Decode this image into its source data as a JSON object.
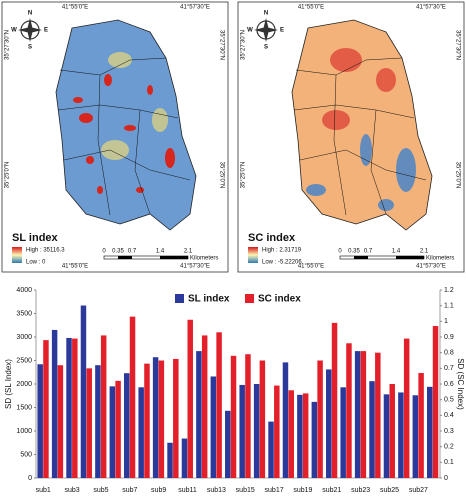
{
  "maps": [
    {
      "title": "SL index",
      "legend_high": "High : 35116.3",
      "legend_low": "Low : 0",
      "x_labels": [
        "41°55'0\"E",
        "41°57'30\"E"
      ],
      "y_labels": [
        "35°27'30\"N",
        "35°25'0\"N"
      ],
      "scale_ticks": [
        "0",
        "0.35",
        "0.7",
        "1.4",
        "2.1"
      ],
      "scale_unit": "Kilometers",
      "compass": [
        "N",
        "E",
        "S",
        "W"
      ]
    },
    {
      "title": "SC  index",
      "legend_high": "High : 2.31719",
      "legend_low": "Low : -5.22206",
      "x_labels": [
        "41°55'0\"E",
        "41°57'30\"E"
      ],
      "y_labels": [
        "35°27'30\"N",
        "35°25'0\"N"
      ],
      "scale_ticks": [
        "0",
        "0.35",
        "0.7",
        "1.4",
        "2.1"
      ],
      "scale_unit": "Kilometers",
      "compass": [
        "N",
        "E",
        "S",
        "W"
      ]
    }
  ],
  "chart_data": {
    "type": "bar",
    "categories": [
      "sub1",
      null,
      "sub3",
      null,
      "sub5",
      null,
      "sub7",
      null,
      "sub9",
      null,
      "sub11",
      null,
      "sub13",
      null,
      "sub15",
      null,
      "sub17",
      null,
      "sub19",
      null,
      "sub21",
      null,
      "sub23",
      null,
      "sub25",
      null,
      "sub27",
      null
    ],
    "series": [
      {
        "name": "SL index",
        "color": "#2b3a9a",
        "values": [
          2420,
          3150,
          2980,
          3670,
          2400,
          1950,
          2230,
          1930,
          2570,
          750,
          840,
          2700,
          2160,
          1430,
          1980,
          2000,
          1200,
          2460,
          1770,
          1620,
          2310,
          1930,
          2700,
          2060,
          1780,
          1820,
          1760,
          1940
        ]
      },
      {
        "name": "SC index",
        "color": "#e3202a",
        "axis": "y2",
        "values": [
          0.88,
          0.72,
          0.89,
          0.7,
          0.91,
          0.62,
          1.03,
          0.73,
          0.75,
          0.76,
          1.01,
          0.91,
          0.93,
          0.78,
          0.79,
          0.75,
          0.59,
          0.56,
          0.54,
          0.75,
          0.99,
          0.86,
          0.81,
          0.8,
          0.6,
          0.89,
          0.67,
          0.97
        ]
      }
    ],
    "ylabel": "SD (SL Index)",
    "y2label": "SD (SC Index)",
    "ylim": [
      0,
      4000
    ],
    "yticks": [
      0,
      500,
      1000,
      1500,
      2000,
      2500,
      3000,
      3500,
      4000
    ],
    "y2lim": [
      0,
      1.2
    ],
    "y2ticks": [
      0,
      0.1,
      0.2,
      0.3,
      0.4,
      0.5,
      0.6,
      0.7,
      0.8,
      0.9,
      1,
      1.1,
      1.2
    ],
    "legend": "top"
  }
}
